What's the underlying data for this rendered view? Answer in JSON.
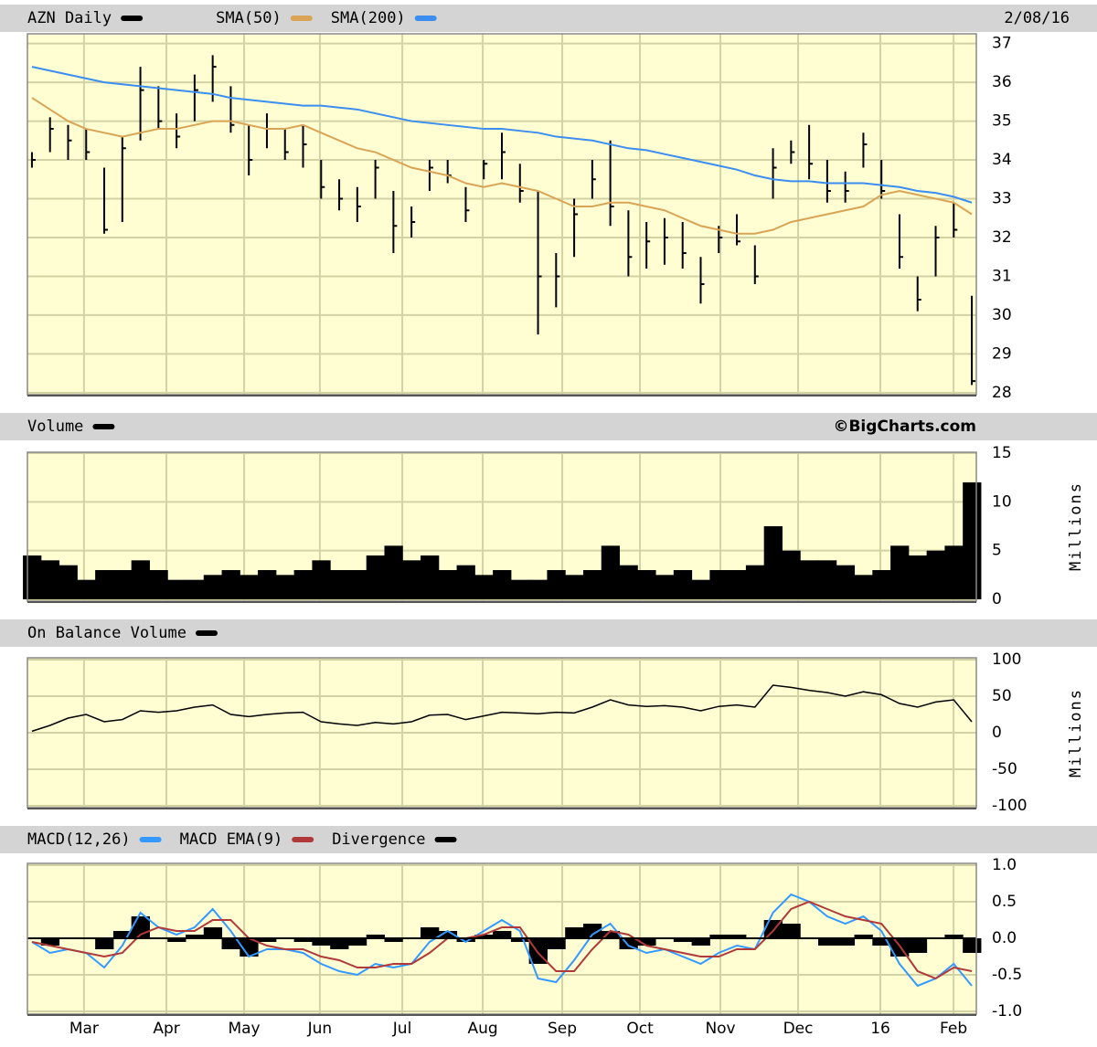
{
  "chart_data": [
    {
      "type": "combo",
      "date": "2/08/16",
      "xlim": [
        -0.25,
        52.25
      ],
      "ylim": [
        27.95,
        37.25
      ],
      "yticks": [
        37,
        36,
        35,
        34,
        33,
        32,
        31,
        30,
        29,
        28
      ],
      "grid": true,
      "series": [
        {
          "name": "AZN Daily",
          "color": "#000000",
          "type": "ohlc",
          "high": [
            34.2,
            35.1,
            34.9,
            34.8,
            33.8,
            34.6,
            36.4,
            35.9,
            35.2,
            36.2,
            36.7,
            35.9,
            34.9,
            35.2,
            34.8,
            34.9,
            34.0,
            33.5,
            33.3,
            34.0,
            33.2,
            32.8,
            34.0,
            34.0,
            33.3,
            34.0,
            34.7,
            33.9,
            33.2,
            31.6,
            33.0,
            34.0,
            34.5,
            32.7,
            32.4,
            32.5,
            32.4,
            31.5,
            32.3,
            32.6,
            31.8,
            34.3,
            34.5,
            34.9,
            34.0,
            33.7,
            34.7,
            34.0,
            32.6,
            31.0,
            32.3,
            32.9,
            30.5
          ],
          "low": [
            33.8,
            34.2,
            34.0,
            34.0,
            32.1,
            32.4,
            34.5,
            34.8,
            34.3,
            35.0,
            35.5,
            34.7,
            33.6,
            34.3,
            34.0,
            33.8,
            33.0,
            32.7,
            32.4,
            33.0,
            31.6,
            32.0,
            33.2,
            33.4,
            32.4,
            33.5,
            33.5,
            32.9,
            29.5,
            30.2,
            31.5,
            33.0,
            32.3,
            31.0,
            31.2,
            31.3,
            31.2,
            30.3,
            31.6,
            31.8,
            30.8,
            33.0,
            33.9,
            33.5,
            32.9,
            32.9,
            33.8,
            33.0,
            31.2,
            30.1,
            31.0,
            32.0,
            28.2
          ],
          "close": [
            34.0,
            34.8,
            34.5,
            34.2,
            32.2,
            34.3,
            35.8,
            35.0,
            34.6,
            35.8,
            36.4,
            34.9,
            34.0,
            34.8,
            34.2,
            34.4,
            33.3,
            33.0,
            32.8,
            33.8,
            32.3,
            32.4,
            33.8,
            33.6,
            32.7,
            33.9,
            34.2,
            33.2,
            31.0,
            31.0,
            32.6,
            33.5,
            32.8,
            31.5,
            31.9,
            32.0,
            31.6,
            30.8,
            32.0,
            31.9,
            31.0,
            33.8,
            34.2,
            33.9,
            33.2,
            33.2,
            34.4,
            33.2,
            31.5,
            30.4,
            32.0,
            32.2,
            28.3
          ]
        },
        {
          "name": "SMA(50)",
          "color": "#d9a455",
          "type": "line",
          "values": [
            35.6,
            35.3,
            35.0,
            34.8,
            34.7,
            34.6,
            34.7,
            34.8,
            34.8,
            34.9,
            35.0,
            35.0,
            34.9,
            34.8,
            34.8,
            34.9,
            34.7,
            34.5,
            34.3,
            34.2,
            34.0,
            33.8,
            33.7,
            33.6,
            33.4,
            33.3,
            33.4,
            33.3,
            33.2,
            33.0,
            32.8,
            32.8,
            32.9,
            32.9,
            32.8,
            32.7,
            32.5,
            32.3,
            32.2,
            32.1,
            32.1,
            32.2,
            32.4,
            32.5,
            32.6,
            32.7,
            32.8,
            33.1,
            33.2,
            33.1,
            33.0,
            32.9,
            32.6
          ]
        },
        {
          "name": "SMA(200)",
          "color": "#3b8ef0",
          "type": "line",
          "values": [
            36.4,
            36.3,
            36.2,
            36.1,
            36.0,
            35.95,
            35.9,
            35.85,
            35.8,
            35.75,
            35.7,
            35.6,
            35.55,
            35.5,
            35.45,
            35.4,
            35.4,
            35.35,
            35.3,
            35.2,
            35.1,
            35.0,
            34.95,
            34.9,
            34.85,
            34.8,
            34.8,
            34.75,
            34.7,
            34.6,
            34.55,
            34.5,
            34.4,
            34.3,
            34.25,
            34.15,
            34.05,
            33.95,
            33.85,
            33.75,
            33.6,
            33.5,
            33.45,
            33.45,
            33.4,
            33.4,
            33.4,
            33.35,
            33.3,
            33.2,
            33.15,
            33.05,
            32.9
          ]
        }
      ]
    },
    {
      "type": "bar",
      "credit": "©BigCharts.com",
      "y_label": "Millions",
      "xlim": [
        -0.25,
        52.25
      ],
      "ylim": [
        0,
        15
      ],
      "yticks": [
        15,
        10,
        5,
        0
      ],
      "grid": true,
      "series": [
        {
          "name": "Volume",
          "color": "#000000",
          "values": [
            4.5,
            4.0,
            3.5,
            2.0,
            3.0,
            3.0,
            4.0,
            3.0,
            2.0,
            2.0,
            2.5,
            3.0,
            2.5,
            3.0,
            2.5,
            3.0,
            4.0,
            3.0,
            3.0,
            4.5,
            5.5,
            4.0,
            4.5,
            3.0,
            3.5,
            2.5,
            3.0,
            2.0,
            2.0,
            3.0,
            2.5,
            3.0,
            5.5,
            3.5,
            3.0,
            2.5,
            3.0,
            2.0,
            3.0,
            3.0,
            3.5,
            7.5,
            5.0,
            4.0,
            4.0,
            3.5,
            2.5,
            3.0,
            5.5,
            4.5,
            5.0,
            5.5,
            12.0
          ]
        }
      ]
    },
    {
      "type": "line",
      "y_label": "Millions",
      "xlim": [
        -0.25,
        52.25
      ],
      "ylim": [
        -100,
        100
      ],
      "yticks": [
        100,
        50,
        0,
        -50,
        -100
      ],
      "grid": true,
      "series": [
        {
          "name": "On Balance Volume",
          "color": "#000000",
          "values": [
            2,
            10,
            20,
            25,
            15,
            18,
            30,
            28,
            30,
            35,
            38,
            25,
            22,
            25,
            27,
            28,
            15,
            12,
            10,
            14,
            12,
            15,
            24,
            25,
            18,
            23,
            28,
            27,
            26,
            28,
            27,
            35,
            45,
            38,
            36,
            37,
            35,
            30,
            36,
            38,
            35,
            65,
            62,
            58,
            55,
            50,
            56,
            52,
            40,
            35,
            42,
            45,
            15
          ]
        }
      ]
    },
    {
      "type": "combo",
      "xlim": [
        -0.25,
        52.25
      ],
      "ylim": [
        -1,
        1
      ],
      "yticks": [
        {
          "value": 1,
          "label": "1.0"
        },
        0.5,
        {
          "value": 0,
          "label": "0.0"
        },
        -0.5,
        {
          "value": -1,
          "label": "-1.0"
        }
      ],
      "grid": true,
      "xticks": [
        {
          "value": 2.88,
          "label": "Mar"
        },
        {
          "value": 7.44,
          "label": "Apr"
        },
        {
          "value": 11.74,
          "label": "May"
        },
        {
          "value": 15.93,
          "label": "Jun"
        },
        {
          "value": 20.49,
          "label": "Jul"
        },
        {
          "value": 24.94,
          "label": "Aug"
        },
        {
          "value": 29.34,
          "label": "Sep"
        },
        {
          "value": 33.64,
          "label": "Oct"
        },
        {
          "value": 38.09,
          "label": "Nov"
        },
        {
          "value": 42.39,
          "label": "Dec"
        },
        {
          "value": 46.94,
          "label": "16"
        },
        {
          "value": 50.99,
          "label": "Feb"
        }
      ],
      "series": [
        {
          "name": "MACD(12,26)",
          "color": "#3399ff",
          "type": "line",
          "values": [
            -0.05,
            -0.2,
            -0.15,
            -0.2,
            -0.4,
            -0.1,
            0.35,
            0.15,
            0.05,
            0.15,
            0.4,
            0.1,
            -0.25,
            -0.15,
            -0.15,
            -0.2,
            -0.35,
            -0.45,
            -0.5,
            -0.35,
            -0.4,
            -0.35,
            -0.05,
            0.1,
            -0.05,
            0.1,
            0.25,
            0.1,
            -0.55,
            -0.6,
            -0.3,
            0.05,
            0.2,
            -0.1,
            -0.2,
            -0.15,
            -0.25,
            -0.35,
            -0.2,
            -0.1,
            -0.15,
            0.35,
            0.6,
            0.5,
            0.3,
            0.2,
            0.3,
            0.1,
            -0.35,
            -0.65,
            -0.55,
            -0.35,
            -0.65
          ]
        },
        {
          "name": "MACD EMA(9)",
          "color": "#b03a3a",
          "type": "line",
          "values": [
            -0.05,
            -0.1,
            -0.15,
            -0.2,
            -0.25,
            -0.2,
            0.05,
            0.15,
            0.1,
            0.1,
            0.25,
            0.25,
            0.0,
            -0.1,
            -0.15,
            -0.15,
            -0.25,
            -0.3,
            -0.4,
            -0.4,
            -0.35,
            -0.35,
            -0.2,
            0.0,
            0.0,
            0.05,
            0.15,
            0.15,
            -0.2,
            -0.45,
            -0.45,
            -0.15,
            0.1,
            0.05,
            -0.1,
            -0.15,
            -0.2,
            -0.25,
            -0.25,
            -0.15,
            -0.15,
            0.1,
            0.4,
            0.5,
            0.4,
            0.3,
            0.25,
            0.2,
            -0.1,
            -0.45,
            -0.55,
            -0.4,
            -0.45
          ]
        },
        {
          "name": "Divergence",
          "color": "#000000",
          "type": "bar",
          "values": [
            0.0,
            -0.1,
            0.0,
            0.0,
            -0.15,
            0.1,
            0.3,
            0.0,
            -0.05,
            0.05,
            0.15,
            -0.15,
            -0.25,
            -0.05,
            0.0,
            -0.05,
            -0.1,
            -0.15,
            -0.1,
            0.05,
            -0.05,
            0.0,
            0.15,
            0.1,
            -0.05,
            0.05,
            0.1,
            -0.05,
            -0.35,
            -0.15,
            0.15,
            0.2,
            0.1,
            -0.15,
            -0.1,
            0.0,
            -0.05,
            -0.1,
            0.05,
            0.05,
            0.0,
            0.25,
            0.2,
            0.0,
            -0.1,
            -0.1,
            0.05,
            -0.1,
            -0.25,
            -0.2,
            0.0,
            0.05,
            -0.2
          ]
        }
      ]
    }
  ]
}
